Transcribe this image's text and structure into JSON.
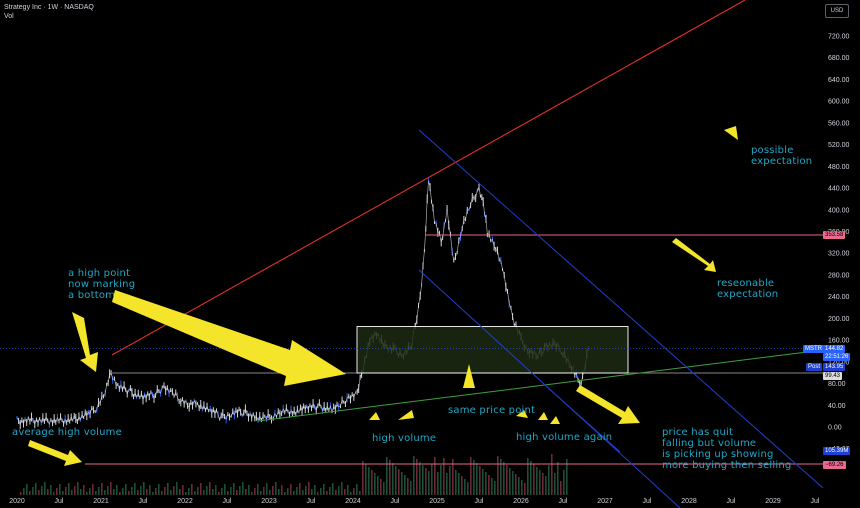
{
  "header": {
    "symbol_line": "Strategy Inc · 1W · NASDAQ",
    "volume_label": "Vol"
  },
  "currency_button": "USD",
  "colors": {
    "background": "#000000",
    "candle": "#d1d4dc",
    "candle_accent": "#2962ff",
    "red_trend": "#e0302a",
    "blue_channel": "#1e3fd0",
    "green_trend": "#3aa33a",
    "pink_line": "#e9698f",
    "box_fill": "#1c2a12",
    "arrow": "#f5e52a",
    "annotation": "#1ea8c7"
  },
  "annotations": [
    "a high point\nnow marking\na bottom",
    "average high volume",
    "high volume",
    "same price point",
    "high volume again",
    "possible\nexpectation",
    "reseonable\nexpectation",
    "price has quit\nfalling but volume\nis picking up showing\nmore buying then selling"
  ],
  "price_tags": {
    "ticker": "MSTR",
    "last_price": "144.82",
    "countdown": "22:51:26",
    "post_label": "Post",
    "post_price": "143.95",
    "low_price": "99.43",
    "resistance": "353.58",
    "volume_value": "105.39M",
    "volume_change": "−69.26"
  },
  "chart_data": {
    "type": "line",
    "title": "Strategy Inc · 1W · NASDAQ",
    "y_axis": {
      "ticks": [
        "720.00",
        "680.00",
        "640.00",
        "600.00",
        "560.00",
        "520.00",
        "480.00",
        "440.00",
        "400.00",
        "360.00",
        "320.00",
        "280.00",
        "240.00",
        "200.00",
        "160.00",
        "120.00",
        "80.00",
        "40.00",
        "0.00",
        "−40.00"
      ],
      "range": [
        -40,
        720
      ]
    },
    "x_axis": {
      "ticks": [
        "2020",
        "Jul",
        "2021",
        "Jul",
        "2022",
        "Jul",
        "2023",
        "Jul",
        "2024",
        "Jul",
        "2025",
        "Jul",
        "2026",
        "Jul",
        "2027",
        "Jul",
        "2028",
        "Jul",
        "2029",
        "Jul"
      ],
      "range": [
        "2020-01",
        "2029-12"
      ]
    },
    "series": [
      {
        "values_by_year": [
          [
            "2020.0",
            11
          ],
          [
            "2020.25",
            12
          ],
          [
            "2020.5",
            12
          ],
          [
            "2020.7",
            14
          ],
          [
            "2020.85",
            22
          ],
          [
            "2020.95",
            38
          ],
          [
            "2021.05",
            65
          ],
          [
            "2021.12",
            100
          ],
          [
            "2021.2",
            75
          ],
          [
            "2021.35",
            65
          ],
          [
            "2021.5",
            55
          ],
          [
            "2021.65",
            60
          ],
          [
            "2021.75",
            75
          ],
          [
            "2021.85",
            60
          ],
          [
            "2021.95",
            52
          ],
          [
            "2022.05",
            40
          ],
          [
            "2022.15",
            43
          ],
          [
            "2022.3",
            30
          ],
          [
            "2022.45",
            18
          ],
          [
            "2022.55",
            25
          ],
          [
            "2022.7",
            28
          ],
          [
            "2022.85",
            18
          ],
          [
            "2022.95",
            15
          ],
          [
            "2023.05",
            22
          ],
          [
            "2023.15",
            28
          ],
          [
            "2023.3",
            30
          ],
          [
            "2023.45",
            35
          ],
          [
            "2023.6",
            38
          ],
          [
            "2023.75",
            33
          ],
          [
            "2023.85",
            40
          ],
          [
            "2023.95",
            55
          ],
          [
            "2024.05",
            60
          ],
          [
            "2024.12",
            110
          ],
          [
            "2024.2",
            160
          ],
          [
            "2024.3",
            170
          ],
          [
            "2024.4",
            145
          ],
          [
            "2024.5",
            140
          ],
          [
            "2024.6",
            135
          ],
          [
            "2024.7",
            150
          ],
          [
            "2024.8",
            240
          ],
          [
            "2024.85",
            320
          ],
          [
            "2024.9",
            460
          ],
          [
            "2024.97",
            380
          ],
          [
            "2025.05",
            340
          ],
          [
            "2025.12",
            400
          ],
          [
            "2025.2",
            300
          ],
          [
            "2025.3",
            370
          ],
          [
            "2025.4",
            410
          ],
          [
            "2025.5",
            440
          ],
          [
            "2025.55",
            410
          ],
          [
            "2025.6",
            360
          ],
          [
            "2025.7",
            330
          ],
          [
            "2025.8",
            280
          ],
          [
            "2025.9",
            200
          ],
          [
            "2026.0",
            160
          ],
          [
            "2026.1",
            140
          ],
          [
            "2026.2",
            130
          ],
          [
            "2026.3",
            150
          ],
          [
            "2026.4",
            150
          ],
          [
            "2026.5",
            140
          ],
          [
            "2026.6",
            110
          ],
          [
            "2026.7",
            80
          ],
          [
            "2026.75",
            100
          ],
          [
            "2026.8",
            144.82
          ]
        ]
      }
    ],
    "annotations_levels": {
      "resistance": 353.58,
      "box_range": [
        99.43,
        185
      ]
    },
    "grid": false,
    "legend": "none"
  }
}
